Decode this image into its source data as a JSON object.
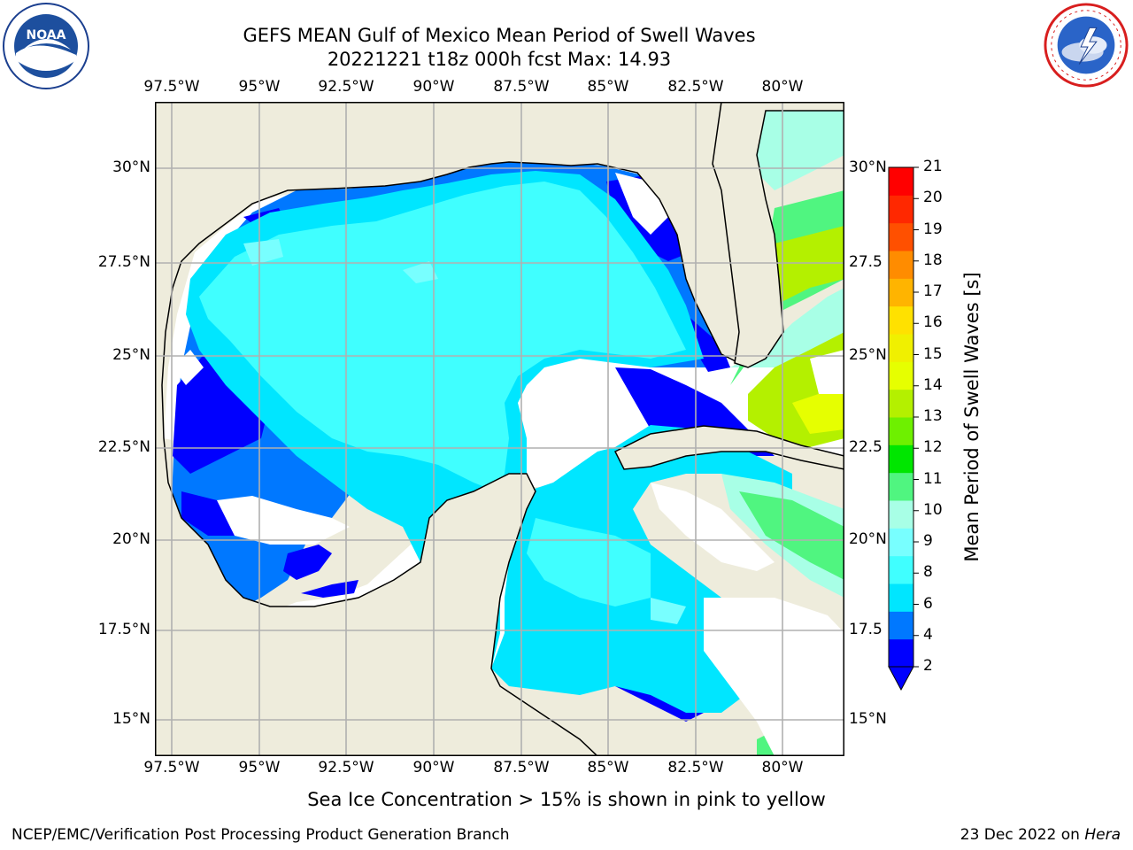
{
  "header": {
    "title_line1": "GEFS MEAN Gulf of Mexico Mean Period of Swell Waves",
    "title_line2": "20221221 t18z 000h fcst   Max: 14.93"
  },
  "logos": {
    "left_text": "NOAA",
    "left_ring_text": "NATIONAL OCEANIC AND ATMOSPHERIC ADMINISTRATION · U.S. DEPARTMENT OF COMMERCE",
    "right_ring_text": "NATIONAL WEATHER SERVICE"
  },
  "map": {
    "lon_labels": [
      "97.5°W",
      "95°W",
      "92.5°W",
      "90°W",
      "87.5°W",
      "85°W",
      "82.5°W",
      "80°W"
    ],
    "lat_labels_left": [
      "30°N",
      "27.5°N",
      "25°N",
      "22.5°N",
      "20°N",
      "17.5°N",
      "15°N"
    ],
    "lat_labels_right": [
      "30°N",
      "27.5",
      "25°N",
      "22.5",
      "20°N",
      "17.5",
      "15°N"
    ],
    "colors": {
      "land": "#eeecdc",
      "grid": "#b0b0b0",
      "coast": "#000000"
    }
  },
  "colorbar": {
    "label": "Mean Period of Swell Waves [s]",
    "ticks": [
      "21",
      "20",
      "19",
      "18",
      "17",
      "16",
      "15",
      "14",
      "13",
      "12",
      "11",
      "10",
      "9",
      "8",
      "6",
      "4",
      "2"
    ],
    "colors": [
      "#0000ff",
      "#0078ff",
      "#00e6ff",
      "#40ffff",
      "#78ffff",
      "#a8ffe6",
      "#50f580",
      "#00e600",
      "#6ef000",
      "#b4f000",
      "#e6ff00",
      "#f0f000",
      "#ffe100",
      "#ffb400",
      "#ff8c00",
      "#ff5000",
      "#ff2800",
      "#ff0000"
    ],
    "extend_color": "#0000ff"
  },
  "caption": "Sea Ice Concentration > 15% is shown in pink to yellow",
  "footer": {
    "left": "NCEP/EMC/Verification Post Processing Product Generation Branch",
    "right_date": "23 Dec 2022 on ",
    "right_machine": "Hera"
  }
}
